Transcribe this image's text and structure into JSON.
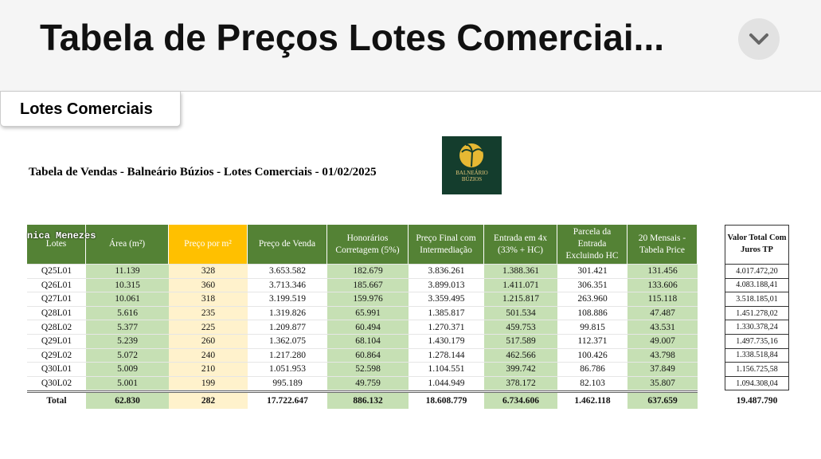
{
  "header": {
    "title": "Tabela de Preços Lotes Comerciai..."
  },
  "tab": "Lotes Comerciais",
  "document": {
    "title": "Tabela de Vendas - Balneário Búzios - Lotes Comerciais - 01/02/2025",
    "logo": "BALNEÁRIO BÚZIOS",
    "watermark": "nica Menezes",
    "table": {
      "columns": [
        "Lotes",
        "Área (m²)",
        "Preço por m²",
        "Preço de Venda",
        "Honorários Corretagem (5%)",
        "Preço Final com Intermediação",
        "Entrada em 4x (33% + HC)",
        "Parcela da Entrada Excluindo HC",
        "20 Mensais - Tabela Price"
      ],
      "rows": [
        [
          "Q25L01",
          "11.139",
          "328",
          "3.653.582",
          "182.679",
          "3.836.261",
          "1.388.361",
          "301.421",
          "131.456"
        ],
        [
          "Q26L01",
          "10.315",
          "360",
          "3.713.346",
          "185.667",
          "3.899.013",
          "1.411.071",
          "306.351",
          "133.606"
        ],
        [
          "Q27L01",
          "10.061",
          "318",
          "3.199.519",
          "159.976",
          "3.359.495",
          "1.215.817",
          "263.960",
          "115.118"
        ],
        [
          "Q28L01",
          "5.616",
          "235",
          "1.319.826",
          "65.991",
          "1.385.817",
          "501.534",
          "108.886",
          "47.487"
        ],
        [
          "Q28L02",
          "5.377",
          "225",
          "1.209.877",
          "60.494",
          "1.270.371",
          "459.753",
          "99.815",
          "43.531"
        ],
        [
          "Q29L01",
          "5.239",
          "260",
          "1.362.075",
          "68.104",
          "1.430.179",
          "517.589",
          "112.371",
          "49.007"
        ],
        [
          "Q29L02",
          "5.072",
          "240",
          "1.217.280",
          "60.864",
          "1.278.144",
          "462.566",
          "100.426",
          "43.798"
        ],
        [
          "Q30L01",
          "5.009",
          "210",
          "1.051.953",
          "52.598",
          "1.104.551",
          "399.742",
          "86.786",
          "37.849"
        ],
        [
          "Q30L02",
          "5.001",
          "199",
          "995.189",
          "49.759",
          "1.044.949",
          "378.172",
          "82.103",
          "35.807"
        ]
      ],
      "total": [
        "Total",
        "62.830",
        "282",
        "17.722.647",
        "886.132",
        "18.608.779",
        "6.734.606",
        "1.462.118",
        "637.659"
      ]
    },
    "side_table": {
      "header": "Valor Total Com Juros TP",
      "values": [
        "4.017.472,20",
        "4.083.188,41",
        "3.518.185,01",
        "1.451.278,02",
        "1.330.378,24",
        "1.497.735,16",
        "1.338.518,84",
        "1.156.725,58",
        "1.094.308,04"
      ],
      "total": "19.487.790"
    }
  }
}
